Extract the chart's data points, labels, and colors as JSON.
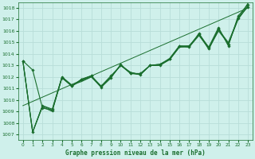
{
  "xlabel": "Graphe pression niveau de la mer (hPa)",
  "xlim": [
    -0.5,
    23.5
  ],
  "ylim": [
    1006.5,
    1018.5
  ],
  "yticks": [
    1007,
    1008,
    1009,
    1010,
    1011,
    1012,
    1013,
    1014,
    1015,
    1016,
    1017,
    1018
  ],
  "xticks": [
    0,
    1,
    2,
    3,
    4,
    5,
    6,
    7,
    8,
    9,
    10,
    11,
    12,
    13,
    14,
    15,
    16,
    17,
    18,
    19,
    20,
    21,
    22,
    23
  ],
  "bg_color": "#cff0eb",
  "grid_color": "#b8ddd8",
  "line_color": "#1a6e2e",
  "series": [
    {
      "x": [
        0,
        1,
        2,
        3,
        4,
        5,
        6,
        7,
        8,
        9,
        10,
        11,
        12,
        13,
        14,
        15,
        16,
        17,
        18,
        19,
        20,
        21,
        22,
        23
      ],
      "y": [
        1013.4,
        1012.6,
        1009.3,
        1009.1,
        1011.9,
        1011.2,
        1011.8,
        1012.1,
        1011.1,
        1011.9,
        1013.1,
        1012.3,
        1012.2,
        1013.0,
        1013.0,
        1013.6,
        1014.7,
        1014.6,
        1015.8,
        1014.5,
        1016.2,
        1014.8,
        1017.1,
        1018.1
      ],
      "marker": true,
      "lw": 0.8
    },
    {
      "x": [
        0,
        1,
        2,
        3,
        4,
        5,
        6,
        7,
        8,
        9,
        10,
        11,
        12,
        13,
        14,
        15,
        16,
        17,
        18,
        19,
        20,
        21,
        22,
        23
      ],
      "y": [
        1013.4,
        1007.2,
        1009.4,
        1009.0,
        1012.0,
        1011.2,
        1011.7,
        1012.0,
        1011.2,
        1012.0,
        1013.0,
        1012.4,
        1012.2,
        1013.0,
        1013.0,
        1013.5,
        1014.6,
        1014.6,
        1015.6,
        1014.5,
        1016.0,
        1014.9,
        1017.0,
        1018.2
      ],
      "marker": false,
      "lw": 0.8
    },
    {
      "x": [
        0,
        1,
        2,
        3,
        4,
        5,
        6,
        7,
        8,
        9,
        10,
        11,
        12,
        13,
        14,
        15,
        16,
        17,
        18,
        19,
        20,
        21,
        22,
        23
      ],
      "y": [
        1013.4,
        1007.2,
        1009.5,
        1009.1,
        1012.0,
        1011.3,
        1011.6,
        1012.0,
        1011.1,
        1012.0,
        1013.0,
        1012.4,
        1012.2,
        1013.0,
        1013.1,
        1013.5,
        1014.6,
        1014.7,
        1015.7,
        1014.4,
        1016.1,
        1015.0,
        1017.1,
        1018.4
      ],
      "marker": false,
      "lw": 0.8
    },
    {
      "x": [
        0,
        1,
        2,
        3,
        4,
        5,
        6,
        7,
        8,
        9,
        10,
        11,
        12,
        13,
        14,
        15,
        16,
        17,
        18,
        19,
        20,
        21,
        22,
        23
      ],
      "y": [
        1013.4,
        1007.2,
        1009.5,
        1009.2,
        1012.0,
        1011.2,
        1011.8,
        1012.1,
        1011.2,
        1012.1,
        1013.0,
        1012.3,
        1012.3,
        1013.0,
        1013.1,
        1013.6,
        1014.7,
        1014.7,
        1015.7,
        1014.6,
        1016.3,
        1014.7,
        1017.3,
        1018.3
      ],
      "marker": true,
      "lw": 0.8
    },
    {
      "x": [
        0,
        23
      ],
      "y": [
        1009.5,
        1018.0
      ],
      "marker": false,
      "lw": 0.7
    }
  ]
}
